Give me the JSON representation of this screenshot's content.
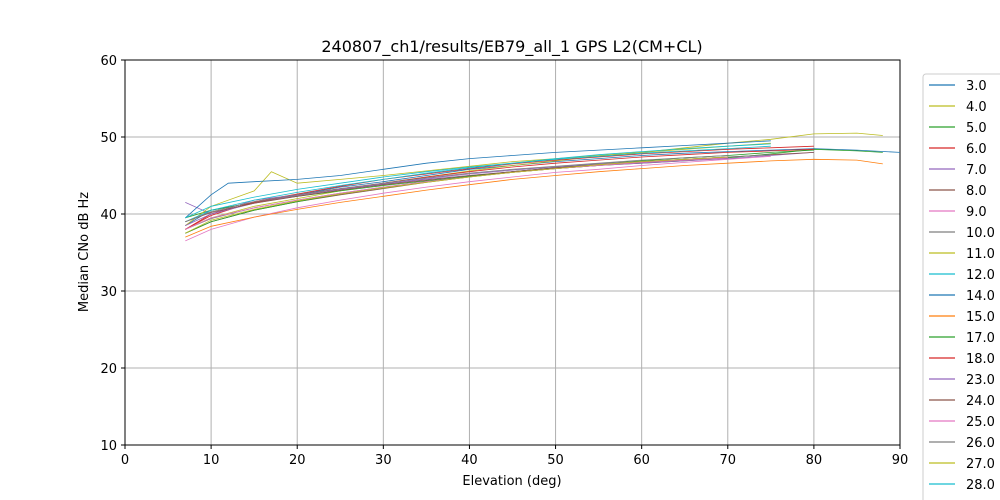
{
  "chart_data": {
    "type": "line",
    "title": "240807_ch1/results/EB79_all_1 GPS L2(CM+CL)",
    "xlabel": "Elevation (deg)",
    "ylabel": "Median CNo dB Hz",
    "xlim": [
      0,
      90
    ],
    "ylim": [
      10,
      60
    ],
    "xticks": [
      "0",
      "10",
      "20",
      "30",
      "40",
      "50",
      "60",
      "70",
      "80",
      "90"
    ],
    "yticks": [
      "10",
      "20",
      "30",
      "40",
      "50",
      "60"
    ],
    "grid": true,
    "legend_placement": "right (clipped)",
    "series": [
      {
        "name": "3.0",
        "color": "#1f77b4",
        "x": [
          7,
          10,
          15,
          20,
          25,
          30,
          35,
          40,
          45,
          50,
          55,
          60,
          65,
          70,
          75,
          80,
          85,
          90
        ],
        "y": [
          38.5,
          40.5,
          41.5,
          42.5,
          43.5,
          44.2,
          45.0,
          45.8,
          46.3,
          46.8,
          47.2,
          47.6,
          47.9,
          48.1,
          48.3,
          48.5,
          48.3,
          48.0
        ]
      },
      {
        "name": "4.0",
        "color": "#bcbd22",
        "x": [
          7,
          10,
          15,
          20,
          25,
          30,
          35,
          40,
          45,
          50,
          55,
          60,
          65,
          70,
          75,
          80,
          85,
          88
        ],
        "y": [
          38.0,
          39.5,
          41.0,
          42.0,
          43.0,
          44.0,
          44.8,
          45.6,
          46.3,
          46.9,
          47.5,
          48.0,
          48.6,
          49.2,
          49.7,
          50.4,
          50.5,
          50.2
        ]
      },
      {
        "name": "5.0",
        "color": "#2ca02c",
        "x": [
          7,
          10,
          15,
          20,
          25,
          30,
          35,
          40,
          45,
          50,
          55,
          60,
          65,
          70,
          75,
          80,
          85,
          88
        ],
        "y": [
          39.5,
          40.5,
          41.5,
          42.3,
          43.0,
          43.7,
          44.3,
          44.9,
          45.4,
          45.9,
          46.3,
          46.6,
          46.9,
          47.3,
          47.8,
          48.4,
          48.2,
          48.0
        ]
      },
      {
        "name": "6.0",
        "color": "#d62728",
        "x": [
          7,
          10,
          15,
          20,
          25,
          30,
          35,
          40,
          45,
          50,
          55,
          60,
          65,
          70,
          75,
          80
        ],
        "y": [
          38.0,
          39.8,
          41.6,
          42.6,
          43.6,
          44.5,
          45.2,
          45.9,
          46.5,
          47.0,
          47.4,
          47.8,
          48.1,
          48.4,
          48.6,
          48.8
        ]
      },
      {
        "name": "7.0",
        "color": "#9467bd",
        "x": [
          7,
          10,
          15,
          20,
          25,
          30,
          35,
          40,
          45,
          50,
          55,
          60,
          65,
          70,
          75,
          80
        ],
        "y": [
          41.5,
          40.0,
          41.8,
          42.5,
          43.2,
          43.9,
          44.5,
          45.0,
          45.5,
          45.9,
          46.3,
          46.6,
          46.9,
          47.2,
          47.6,
          48.0
        ]
      },
      {
        "name": "8.0",
        "color": "#8c564b",
        "x": [
          7,
          10,
          15,
          20,
          25,
          30,
          35,
          40,
          45,
          50,
          55,
          60,
          65,
          70,
          75,
          80
        ],
        "y": [
          37.5,
          39.0,
          40.5,
          41.6,
          42.5,
          43.3,
          44.1,
          44.8,
          45.4,
          45.9,
          46.3,
          46.7,
          47.1,
          47.4,
          47.7,
          48.0
        ]
      },
      {
        "name": "9.0",
        "color": "#e377c2",
        "x": [
          7,
          10,
          15,
          20,
          25,
          30,
          35,
          40,
          45,
          50,
          55,
          60,
          65,
          70,
          75
        ],
        "y": [
          36.5,
          38.0,
          39.6,
          40.8,
          41.8,
          42.7,
          43.5,
          44.2,
          44.8,
          45.4,
          45.8,
          46.3,
          46.7,
          47.1,
          47.5
        ]
      },
      {
        "name": "10.0",
        "color": "#7f7f7f",
        "x": [
          7,
          10,
          15,
          20,
          25,
          30,
          35,
          40,
          45,
          50,
          55,
          60,
          65,
          70,
          75
        ],
        "y": [
          38.0,
          39.4,
          40.8,
          41.8,
          42.7,
          43.5,
          44.2,
          44.9,
          45.5,
          46.0,
          46.4,
          46.8,
          47.1,
          47.4,
          47.7
        ]
      },
      {
        "name": "11.0",
        "color": "#bcbd22",
        "x": [
          7,
          10,
          15,
          17,
          20,
          25,
          30,
          35,
          40,
          45,
          50,
          55,
          60,
          65,
          70,
          75
        ],
        "y": [
          38.5,
          41.0,
          43.0,
          45.5,
          44.0,
          44.5,
          45.0,
          45.6,
          46.2,
          46.8,
          47.2,
          47.6,
          48.0,
          48.4,
          48.8,
          49.2
        ]
      },
      {
        "name": "12.0",
        "color": "#17becf",
        "x": [
          7,
          10,
          15,
          20,
          25,
          30,
          35,
          40,
          45,
          50,
          55,
          60,
          65,
          70,
          75
        ],
        "y": [
          39.0,
          40.5,
          41.8,
          42.8,
          43.7,
          44.5,
          45.3,
          46.0,
          46.6,
          47.2,
          47.7,
          48.1,
          48.5,
          48.8,
          49.1
        ]
      },
      {
        "name": "14.0",
        "color": "#1f77b4",
        "x": [
          7,
          10,
          12,
          15,
          20,
          25,
          30,
          35,
          40,
          45,
          50,
          55,
          60,
          65,
          70,
          75
        ],
        "y": [
          39.5,
          42.5,
          44.0,
          44.2,
          44.5,
          45.0,
          45.8,
          46.6,
          47.2,
          47.6,
          48.0,
          48.3,
          48.6,
          48.9,
          49.2,
          49.5
        ]
      },
      {
        "name": "15.0",
        "color": "#ff7f0e",
        "x": [
          7,
          10,
          15,
          20,
          25,
          30,
          35,
          40,
          45,
          50,
          55,
          60,
          65,
          70,
          75,
          80,
          85,
          88
        ],
        "y": [
          37.0,
          38.4,
          39.6,
          40.6,
          41.5,
          42.3,
          43.1,
          43.8,
          44.5,
          45.0,
          45.5,
          45.9,
          46.3,
          46.6,
          46.9,
          47.1,
          47.0,
          46.5
        ]
      },
      {
        "name": "17.0",
        "color": "#2ca02c",
        "x": [
          7,
          10,
          15,
          20,
          25,
          30,
          35,
          40,
          45,
          50,
          55,
          60,
          65,
          70,
          75,
          80
        ],
        "y": [
          37.5,
          39.0,
          40.5,
          41.6,
          42.6,
          43.4,
          44.2,
          44.9,
          45.5,
          46.0,
          46.5,
          46.9,
          47.3,
          47.6,
          48.0,
          48.3
        ]
      },
      {
        "name": "18.0",
        "color": "#d62728",
        "x": [
          7,
          10,
          15,
          20,
          25,
          30,
          35,
          40,
          45,
          50,
          55,
          60,
          65,
          70,
          75,
          80
        ],
        "y": [
          38.0,
          40.0,
          41.5,
          42.5,
          43.3,
          44.0,
          44.8,
          45.5,
          46.1,
          46.6,
          47.0,
          47.4,
          47.7,
          48.0,
          48.2,
          48.4
        ]
      },
      {
        "name": "23.0",
        "color": "#9467bd",
        "x": [
          7,
          10,
          15,
          20,
          25,
          30,
          35,
          40,
          45,
          50,
          55,
          60,
          65,
          70
        ],
        "y": [
          38.5,
          40.0,
          41.4,
          42.4,
          43.2,
          43.9,
          44.6,
          45.2,
          45.7,
          46.1,
          46.5,
          46.8,
          47.1,
          47.4
        ]
      },
      {
        "name": "24.0",
        "color": "#8c564b",
        "x": [
          7,
          10,
          15,
          20,
          25,
          30,
          35,
          40,
          45,
          50,
          55,
          60,
          65,
          70
        ],
        "y": [
          39.0,
          40.2,
          41.4,
          42.3,
          43.1,
          43.8,
          44.4,
          45.0,
          45.5,
          46.0,
          46.4,
          46.7,
          47.0,
          47.3
        ]
      },
      {
        "name": "25.0",
        "color": "#e377c2",
        "x": [
          7,
          10,
          15,
          20,
          25,
          30,
          35,
          40,
          45,
          50,
          55,
          60,
          65,
          70
        ],
        "y": [
          38.0,
          39.5,
          40.8,
          41.8,
          42.7,
          43.5,
          44.2,
          44.8,
          45.4,
          45.9,
          46.3,
          46.7,
          47.0,
          47.3
        ]
      },
      {
        "name": "26.0",
        "color": "#7f7f7f",
        "x": [
          7,
          10,
          15,
          20,
          25,
          30,
          35,
          40,
          45,
          50,
          55,
          60,
          65,
          70
        ],
        "y": [
          39.0,
          40.3,
          41.6,
          42.5,
          43.3,
          44.0,
          44.7,
          45.3,
          45.8,
          46.2,
          46.6,
          47.0,
          47.3,
          47.6
        ]
      },
      {
        "name": "27.0",
        "color": "#bcbd22",
        "x": [
          7,
          10,
          15,
          20,
          25,
          30,
          35,
          40,
          45,
          50,
          55,
          60,
          65,
          70
        ],
        "y": [
          37.5,
          39.2,
          40.6,
          41.7,
          42.6,
          43.4,
          44.1,
          44.8,
          45.4,
          45.9,
          46.4,
          46.8,
          47.1,
          47.4
        ]
      },
      {
        "name": "28.0",
        "color": "#17becf",
        "x": [
          7,
          10,
          15,
          20,
          25,
          30,
          35,
          40,
          45,
          50,
          55,
          60,
          65,
          70,
          75
        ],
        "y": [
          39.5,
          41.0,
          42.2,
          43.2,
          44.0,
          44.8,
          45.5,
          46.1,
          46.6,
          47.1,
          47.5,
          47.9,
          48.2,
          48.5,
          48.8
        ]
      }
    ]
  }
}
